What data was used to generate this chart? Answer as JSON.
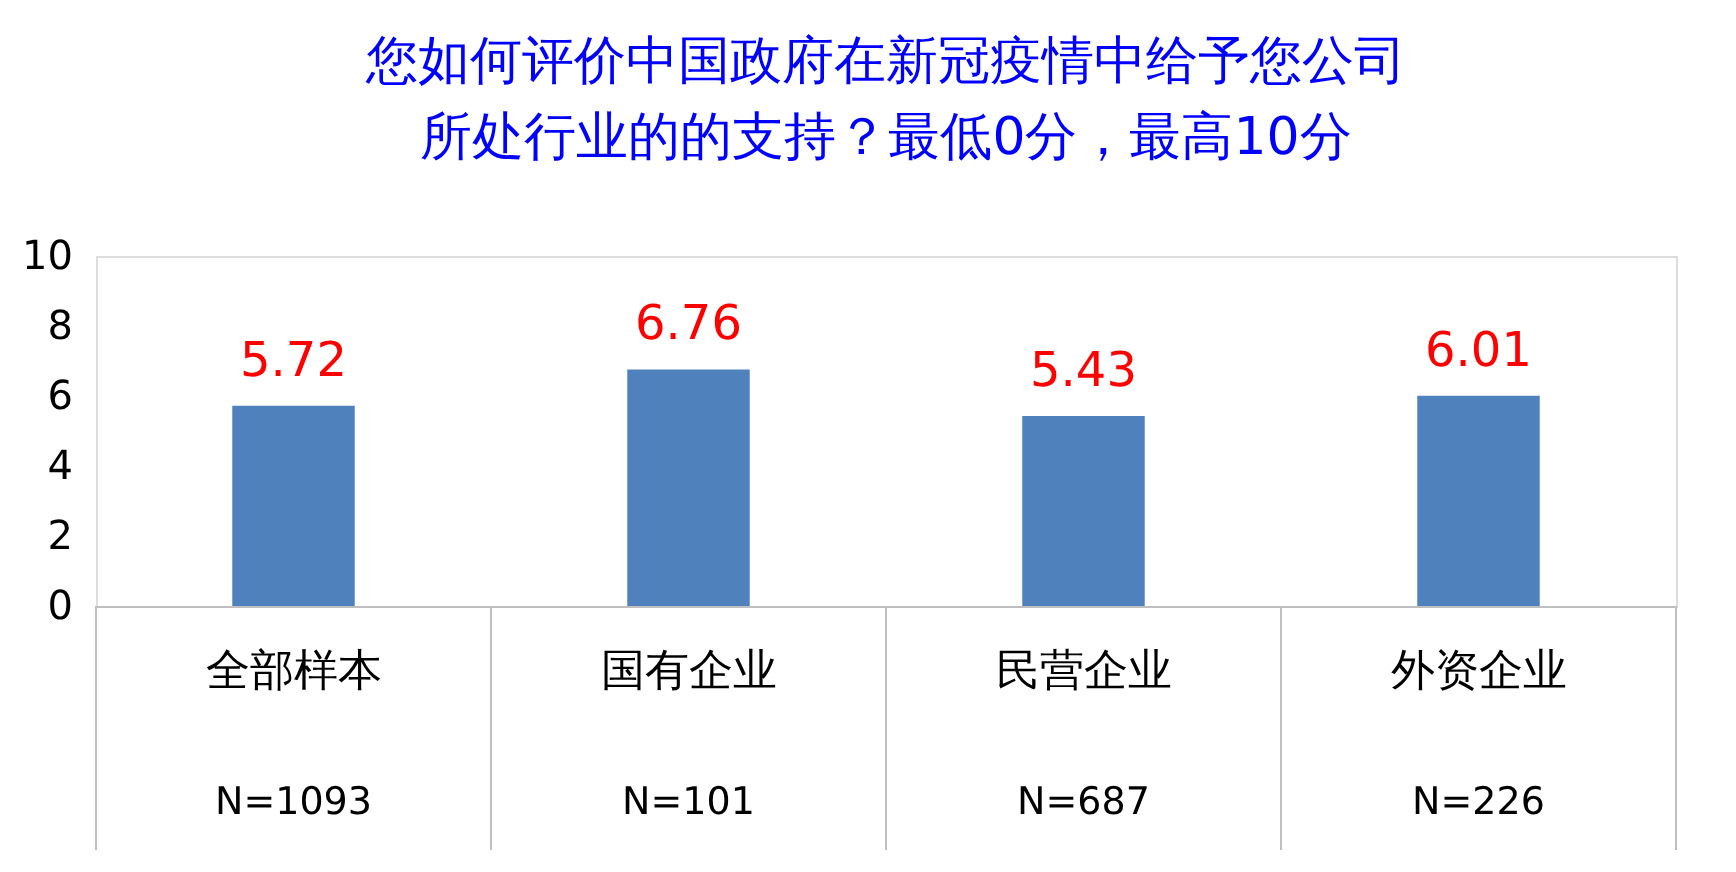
{
  "chart_data": {
    "type": "bar",
    "title": "您如何评价中国政府在新冠疫情中给予您公司所处行业的的支持？最低0分，最高10分",
    "categories": [
      "全部样本",
      "国有企业",
      "民营企业",
      "外资企业"
    ],
    "values": [
      5.72,
      6.76,
      5.43,
      6.01
    ],
    "color": "#4f81bd",
    "ylim": [
      0,
      10
    ],
    "yticks": [
      0,
      2,
      4,
      6,
      8,
      10
    ],
    "data_labels": true,
    "grid": false,
    "annotations": [
      "N=1093",
      "N=101",
      "N=687",
      "N=226"
    ]
  }
}
